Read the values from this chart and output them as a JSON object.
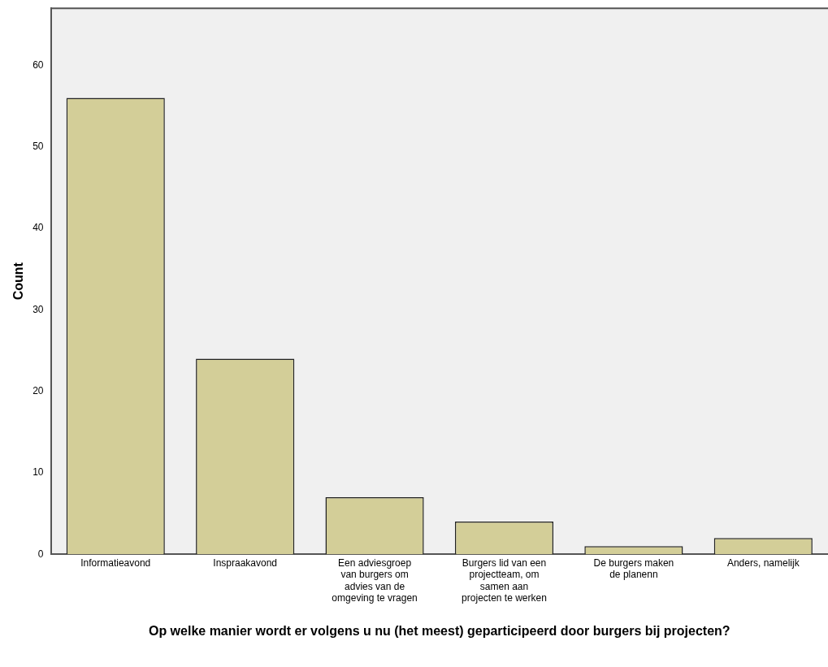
{
  "chart_data": {
    "type": "bar",
    "xlabel": "Op welke manier wordt er volgens u nu (het meest) geparticipeerd door burgers bij projecten?",
    "ylabel": "Count",
    "categories": [
      "Informatieavond",
      "Inspraakavond",
      "Een adviesgroep van burgers om advies van de omgeving te vragen",
      "Burgers lid van een projectteam, om samen aan projecten te werken",
      "De burgers maken de planenn",
      "Anders, namelijk"
    ],
    "values": [
      56,
      24,
      7,
      4,
      1,
      2
    ],
    "color": "#d3ce98",
    "ylim": [
      0,
      67
    ],
    "yticks": [
      0,
      10,
      20,
      30,
      40,
      50,
      60
    ],
    "grid": false,
    "legend": false
  }
}
